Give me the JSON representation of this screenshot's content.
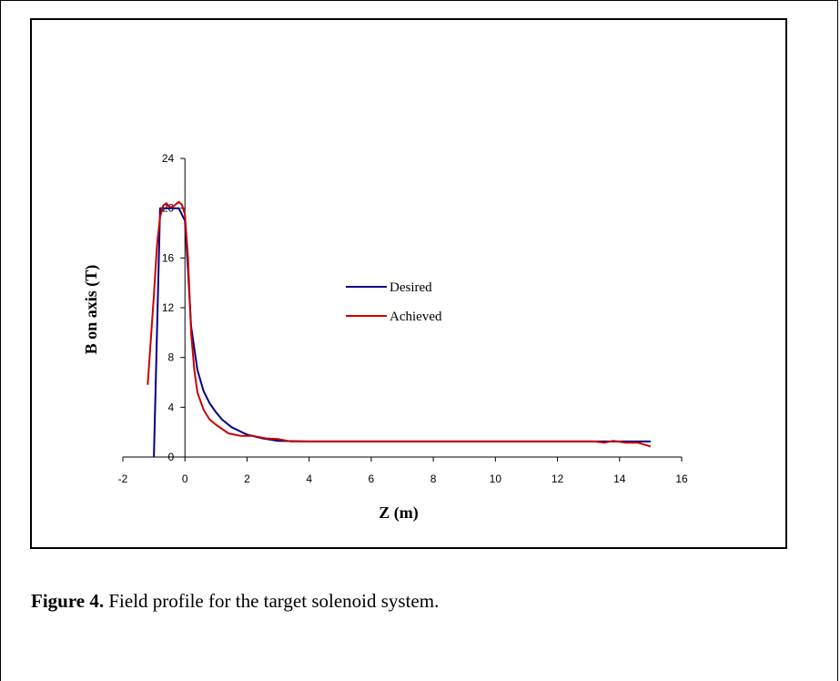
{
  "caption": {
    "figure_label": "Figure 4.",
    "text": "  Field profile for the target solenoid system."
  },
  "colors": {
    "desired": "#000080",
    "achieved": "#cc0000"
  },
  "chart_data": {
    "type": "line",
    "title": "",
    "xlabel": "Z (m)",
    "ylabel": "B on axis (T)",
    "xlim": [
      -2,
      16
    ],
    "ylim": [
      0,
      24
    ],
    "x_ticks": [
      -2,
      0,
      2,
      4,
      6,
      8,
      10,
      12,
      14,
      16
    ],
    "y_ticks": [
      0,
      4,
      8,
      12,
      16,
      20,
      24
    ],
    "grid": false,
    "legend_position": "center",
    "series": [
      {
        "name": "Desired",
        "color": "#000080",
        "points": [
          [
            -1.0,
            0
          ],
          [
            -0.8,
            20
          ],
          [
            -0.6,
            20
          ],
          [
            -0.4,
            20
          ],
          [
            -0.2,
            20
          ],
          [
            0.0,
            19.0
          ],
          [
            0.1,
            15.0
          ],
          [
            0.2,
            10.5
          ],
          [
            0.4,
            7.0
          ],
          [
            0.6,
            5.3
          ],
          [
            0.8,
            4.3
          ],
          [
            1.0,
            3.6
          ],
          [
            1.2,
            3.0
          ],
          [
            1.5,
            2.4
          ],
          [
            2.0,
            1.8
          ],
          [
            2.5,
            1.5
          ],
          [
            3.0,
            1.3
          ],
          [
            4.0,
            1.25
          ],
          [
            6.0,
            1.25
          ],
          [
            8.0,
            1.25
          ],
          [
            10.0,
            1.25
          ],
          [
            12.0,
            1.25
          ],
          [
            14.0,
            1.25
          ],
          [
            15.0,
            1.25
          ]
        ]
      },
      {
        "name": "Achieved",
        "color": "#cc0000",
        "points": [
          [
            -1.2,
            5.8
          ],
          [
            -1.0,
            13.0
          ],
          [
            -0.9,
            17.0
          ],
          [
            -0.8,
            19.3
          ],
          [
            -0.7,
            20.2
          ],
          [
            -0.6,
            20.4
          ],
          [
            -0.5,
            20.1
          ],
          [
            -0.4,
            20.1
          ],
          [
            -0.3,
            20.3
          ],
          [
            -0.2,
            20.5
          ],
          [
            -0.1,
            20.3
          ],
          [
            0.0,
            19.5
          ],
          [
            0.1,
            16.0
          ],
          [
            0.2,
            10.0
          ],
          [
            0.3,
            7.0
          ],
          [
            0.4,
            5.2
          ],
          [
            0.6,
            3.8
          ],
          [
            0.8,
            3.0
          ],
          [
            1.0,
            2.6
          ],
          [
            1.4,
            1.9
          ],
          [
            1.8,
            1.7
          ],
          [
            2.2,
            1.7
          ],
          [
            2.6,
            1.5
          ],
          [
            3.0,
            1.45
          ],
          [
            3.4,
            1.25
          ],
          [
            4.0,
            1.25
          ],
          [
            6.0,
            1.25
          ],
          [
            8.0,
            1.25
          ],
          [
            10.0,
            1.25
          ],
          [
            12.0,
            1.25
          ],
          [
            13.2,
            1.25
          ],
          [
            13.5,
            1.15
          ],
          [
            13.8,
            1.3
          ],
          [
            14.2,
            1.15
          ],
          [
            14.6,
            1.15
          ],
          [
            15.0,
            0.85
          ]
        ]
      }
    ]
  }
}
